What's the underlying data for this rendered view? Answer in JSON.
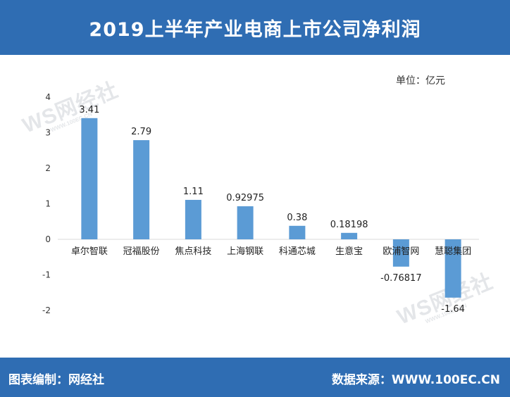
{
  "header": {
    "title": "2019上半年产业电商上市公司净利润"
  },
  "unit_label": "单位：亿元",
  "footer": {
    "left": "图表编制：网经社",
    "right": "数据来源：WWW.100EC.CN"
  },
  "watermark": {
    "mark": "WS网经社",
    "url": "WWW.100EC.CN"
  },
  "colors": {
    "header_bg": "#2f6db3",
    "bar": "#5b9bd5"
  },
  "chart_data": {
    "type": "bar",
    "title": "2019上半年产业电商上市公司净利润",
    "ylabel": "单位：亿元",
    "xlabel": "",
    "ylim": [
      -2,
      4
    ],
    "yticks": [
      -2,
      -1,
      0,
      1,
      2,
      3,
      4
    ],
    "grid": false,
    "categories": [
      "卓尔智联",
      "冠福股份",
      "焦点科技",
      "上海钢联",
      "科通芯城",
      "生意宝",
      "欧浦智网",
      "慧聪集团"
    ],
    "values": [
      3.41,
      2.79,
      1.11,
      0.92975,
      0.38,
      0.18198,
      -0.76817,
      -1.64
    ],
    "value_labels": [
      "3.41",
      "2.79",
      "1.11",
      "0.92975",
      "0.38",
      "0.18198",
      "-0.76817",
      "-1.64"
    ]
  }
}
